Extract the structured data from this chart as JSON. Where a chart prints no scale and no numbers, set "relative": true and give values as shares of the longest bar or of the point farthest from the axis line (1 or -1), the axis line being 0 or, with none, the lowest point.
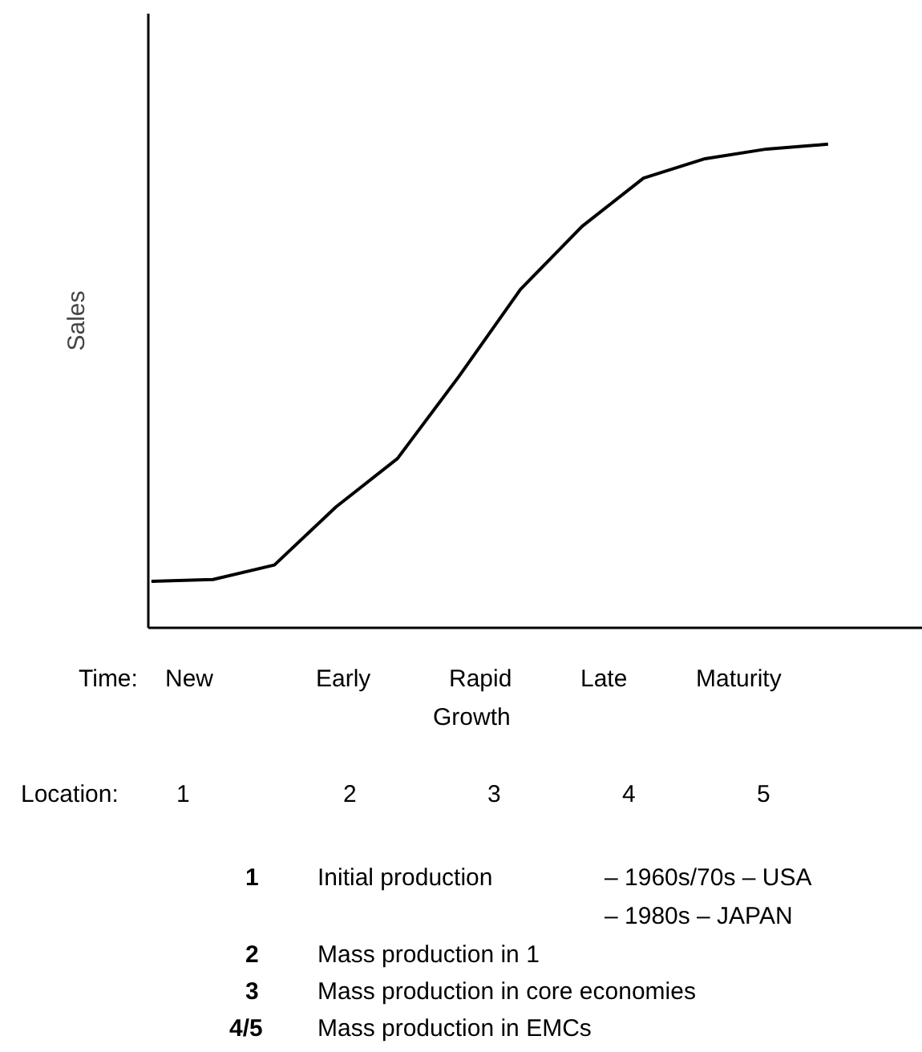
{
  "chart_data": {
    "type": "line",
    "relative": true,
    "ylabel": "Sales",
    "color": "#000000",
    "grid": false,
    "tick_labels": false,
    "categories": [
      null,
      null,
      null,
      null,
      null,
      null,
      null,
      null,
      null,
      null,
      null,
      null
    ],
    "values": [
      0.096,
      0.1,
      0.13,
      0.25,
      0.35,
      0.52,
      0.7,
      0.83,
      0.93,
      0.97,
      0.99,
      1
    ],
    "annotations": [
      "Time:",
      "New",
      "Early",
      "Rapid",
      "Late",
      "Maturity",
      "Growth",
      "Location:",
      "1",
      "2",
      "3",
      "4",
      "5",
      "1",
      "Initial production",
      "– 1960s/70s – USA",
      "– 1980s – JAPAN",
      "2",
      "Mass production in 1",
      "3",
      "Mass production in core economies",
      "4/5",
      "Mass production in EMCs"
    ]
  }
}
